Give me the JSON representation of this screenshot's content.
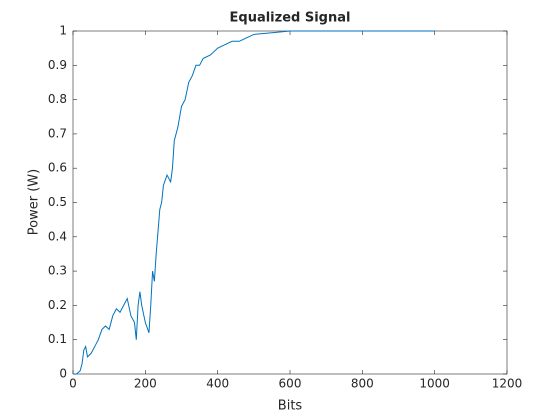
{
  "chart_data": {
    "type": "line",
    "title": "Equalized Signal",
    "xlabel": "Bits",
    "ylabel": "Power (W)",
    "x": [
      0,
      10,
      20,
      25,
      30,
      35,
      40,
      50,
      60,
      70,
      80,
      90,
      100,
      110,
      120,
      130,
      140,
      150,
      160,
      170,
      175,
      180,
      185,
      190,
      200,
      210,
      215,
      220,
      225,
      230,
      240,
      245,
      250,
      260,
      270,
      275,
      280,
      290,
      300,
      310,
      320,
      330,
      340,
      350,
      360,
      380,
      400,
      420,
      440,
      460,
      480,
      500,
      550,
      600,
      700,
      800,
      900,
      1000
    ],
    "values": [
      0,
      0,
      0.01,
      0.03,
      0.07,
      0.08,
      0.05,
      0.06,
      0.08,
      0.1,
      0.13,
      0.14,
      0.13,
      0.17,
      0.19,
      0.18,
      0.2,
      0.22,
      0.17,
      0.15,
      0.1,
      0.2,
      0.24,
      0.2,
      0.15,
      0.12,
      0.2,
      0.3,
      0.27,
      0.35,
      0.48,
      0.5,
      0.55,
      0.58,
      0.56,
      0.6,
      0.68,
      0.72,
      0.78,
      0.8,
      0.85,
      0.87,
      0.9,
      0.9,
      0.92,
      0.93,
      0.95,
      0.96,
      0.97,
      0.97,
      0.98,
      0.99,
      0.995,
      1,
      1,
      1,
      1,
      1
    ],
    "color": "#0072bd",
    "xlim": [
      0,
      1200
    ],
    "xticks": [
      0,
      200,
      400,
      600,
      800,
      1000,
      1200
    ],
    "ylim": [
      0,
      1
    ],
    "yticks": [
      0,
      0.1,
      0.2,
      0.3,
      0.4,
      0.5,
      0.6,
      0.7,
      0.8,
      0.9,
      1
    ]
  }
}
